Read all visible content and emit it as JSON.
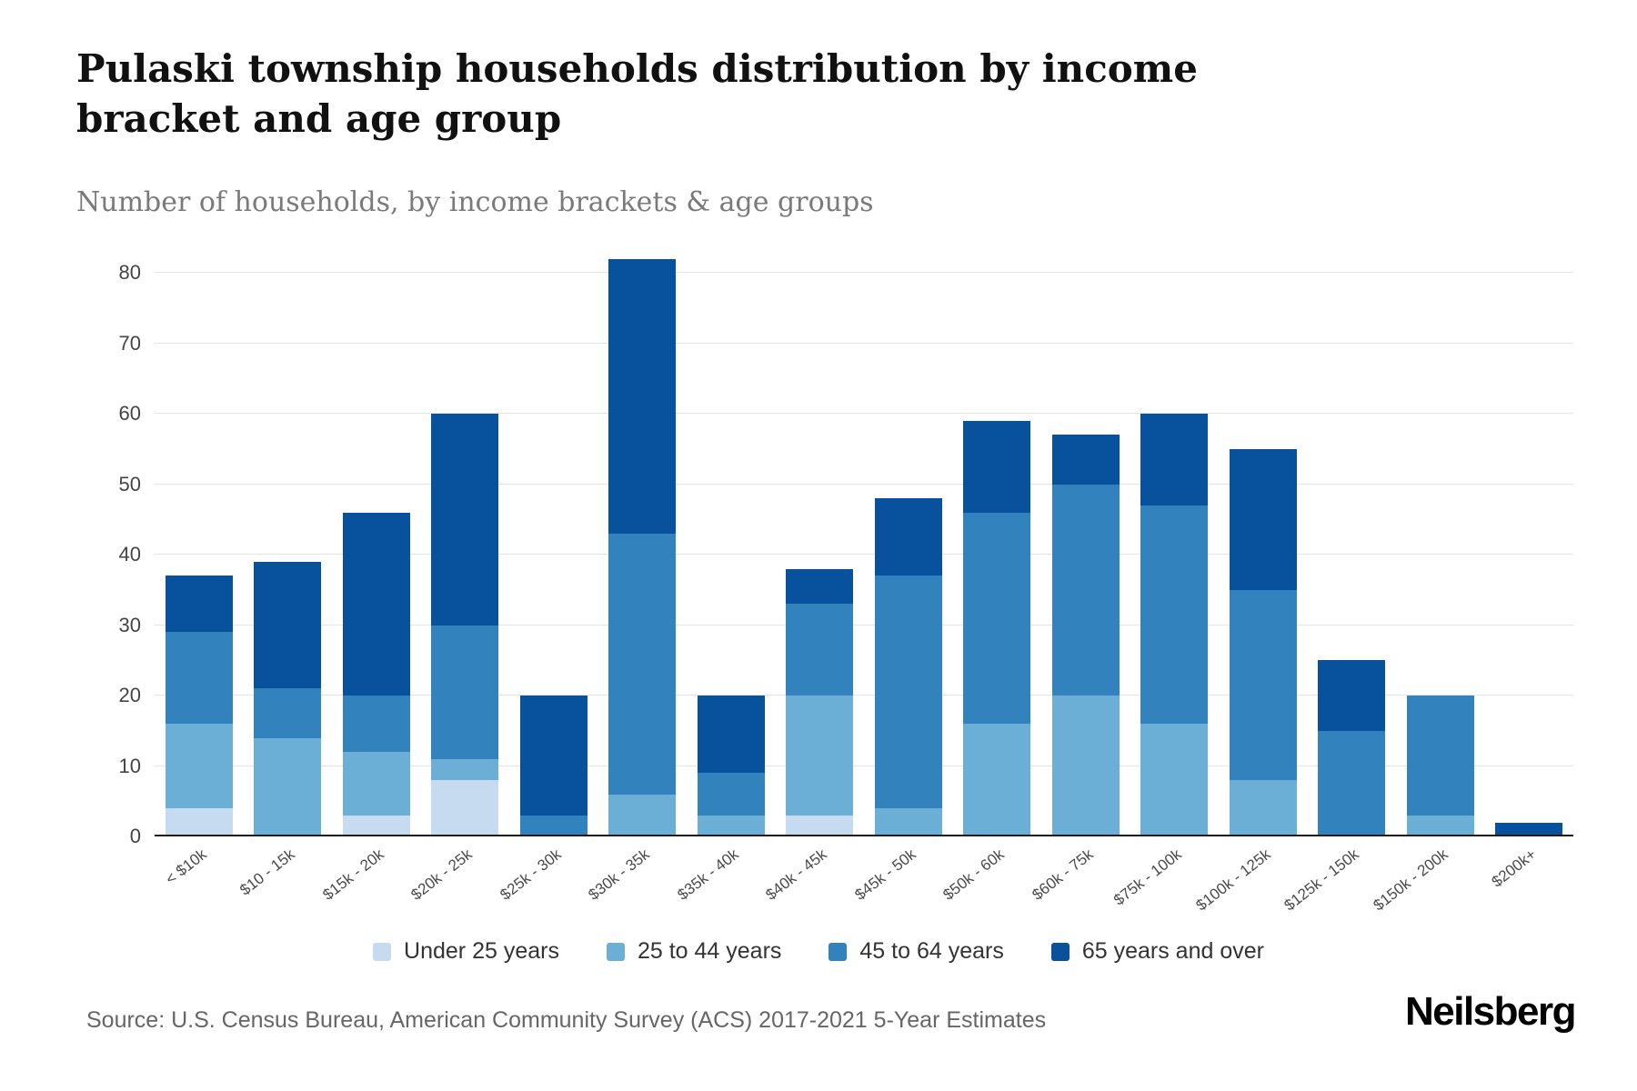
{
  "header": {
    "title": "Pulaski township households distribution by income bracket and age group",
    "subtitle": "Number of households, by income brackets & age groups"
  },
  "footer": {
    "source": "Source: U.S. Census Bureau, American Community Survey (ACS) 2017-2021 5-Year Estimates",
    "logo": "Neilsberg"
  },
  "chart_data": {
    "type": "bar",
    "stacked": true,
    "title": "Pulaski township households distribution by income bracket and age group",
    "subtitle": "Number of households, by income brackets & age groups",
    "xlabel": "",
    "ylabel": "",
    "ylim": [
      0,
      80
    ],
    "yticks": [
      0,
      10,
      20,
      30,
      40,
      50,
      60,
      70,
      80
    ],
    "grid": true,
    "legend_position": "bottom",
    "categories": [
      "< $10k",
      "$10 - 15k",
      "$15k - 20k",
      "$20k - 25k",
      "$25k - 30k",
      "$30k - 35k",
      "$35k - 40k",
      "$40k - 45k",
      "$45k - 50k",
      "$50k - 60k",
      "$60k - 75k",
      "$75k - 100k",
      "$100k - 125k",
      "$125k - 150k",
      "$150k - 200k",
      "$200k+"
    ],
    "series": [
      {
        "name": "Under 25 years",
        "values": [
          4,
          0,
          3,
          8,
          0,
          0,
          0,
          3,
          0,
          0,
          0,
          0,
          0,
          0,
          0,
          0
        ]
      },
      {
        "name": "25 to 44 years",
        "values": [
          12,
          14,
          9,
          3,
          0,
          6,
          3,
          17,
          4,
          16,
          20,
          16,
          8,
          0,
          3,
          0
        ]
      },
      {
        "name": "45 to 64 years",
        "values": [
          13,
          7,
          8,
          19,
          3,
          37,
          6,
          13,
          33,
          30,
          30,
          31,
          27,
          15,
          17,
          0
        ]
      },
      {
        "name": "65 years and over",
        "values": [
          8,
          18,
          26,
          30,
          17,
          39,
          11,
          5,
          11,
          13,
          7,
          13,
          20,
          10,
          0,
          2
        ]
      }
    ],
    "totals": [
      37,
      39,
      46,
      60,
      20,
      82,
      20,
      38,
      48,
      59,
      57,
      60,
      55,
      25,
      20,
      2
    ],
    "colors": [
      "#c6dbef",
      "#6baed6",
      "#3182bd",
      "#08519c"
    ]
  }
}
